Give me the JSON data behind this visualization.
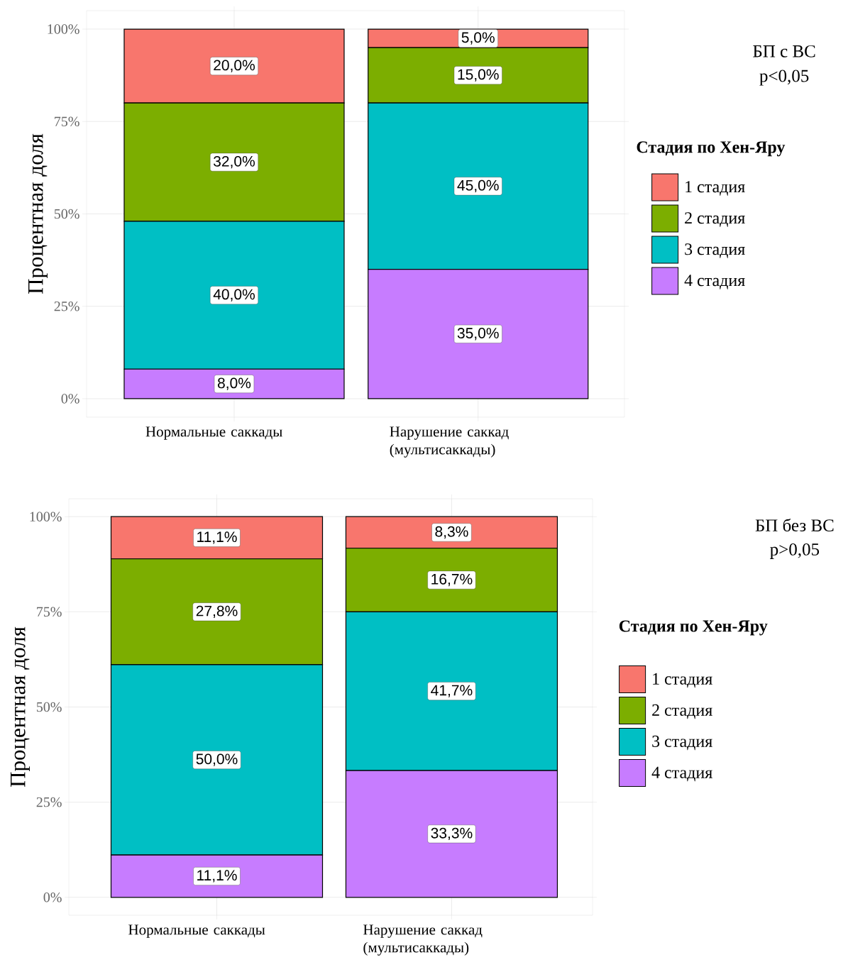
{
  "chart_data": [
    {
      "type": "bar",
      "stacked": true,
      "ylabel": "Процентная доля",
      "legend_title": "Стадия по Хен-Яру",
      "legend": "right",
      "grid": true,
      "categories": [
        "Нормальные саккады",
        "Нарушение саккад (мультисаккады)"
      ],
      "ylim": [
        0,
        100
      ],
      "yticks": [
        {
          "value": 0,
          "label": "0%"
        },
        {
          "value": 25,
          "label": "25%"
        },
        {
          "value": 50,
          "label": "50%"
        },
        {
          "value": 75,
          "label": "75%"
        },
        {
          "value": 100,
          "label": "100%"
        }
      ],
      "series": [
        {
          "name": "4 стадия",
          "color": "#c77cff",
          "values": [
            8.0,
            35.0
          ],
          "value_labels": [
            "8,0%",
            "35,0%"
          ]
        },
        {
          "name": "3 стадия",
          "color": "#00bfc4",
          "values": [
            40.0,
            45.0
          ],
          "value_labels": [
            "40,0%",
            "45,0%"
          ]
        },
        {
          "name": "2 стадия",
          "color": "#7cae00",
          "values": [
            32.0,
            15.0
          ],
          "value_labels": [
            "32,0%",
            "15,0%"
          ]
        },
        {
          "name": "1 стадия",
          "color": "#f8766d",
          "values": [
            20.0,
            5.0
          ],
          "value_labels": [
            "20,0%",
            "5,0%"
          ]
        }
      ],
      "annotations": [
        "БП с ВС",
        "p<0,05"
      ]
    },
    {
      "type": "bar",
      "stacked": true,
      "ylabel": "Процентная доля",
      "legend_title": "Стадия по Хен-Яру",
      "legend": "right",
      "grid": true,
      "categories": [
        "Нормальные саккады",
        "Нарушение саккад (мультисаккады)"
      ],
      "ylim": [
        0,
        100
      ],
      "yticks": [
        {
          "value": 0,
          "label": "0%"
        },
        {
          "value": 25,
          "label": "25%"
        },
        {
          "value": 50,
          "label": "50%"
        },
        {
          "value": 75,
          "label": "75%"
        },
        {
          "value": 100,
          "label": "100%"
        }
      ],
      "series": [
        {
          "name": "4 стадия",
          "color": "#c77cff",
          "values": [
            11.1,
            33.3
          ],
          "value_labels": [
            "11,1%",
            "33,3%"
          ]
        },
        {
          "name": "3 стадия",
          "color": "#00bfc4",
          "values": [
            50.0,
            41.7
          ],
          "value_labels": [
            "50,0%",
            "41,7%"
          ]
        },
        {
          "name": "2 стадия",
          "color": "#7cae00",
          "values": [
            27.8,
            16.7
          ],
          "value_labels": [
            "27,8%",
            "16,7%"
          ]
        },
        {
          "name": "1 стадия",
          "color": "#f8766d",
          "values": [
            11.1,
            8.3
          ],
          "value_labels": [
            "11,1%",
            "8,3%"
          ]
        }
      ],
      "annotations": [
        "БП без ВС",
        "p>0,05"
      ]
    }
  ]
}
